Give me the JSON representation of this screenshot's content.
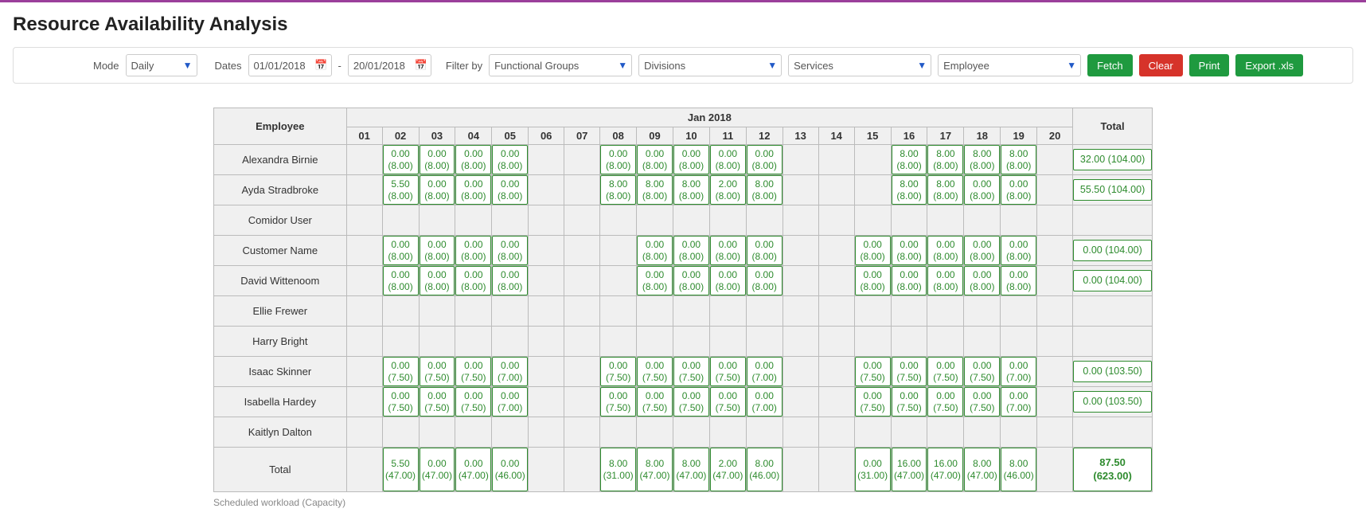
{
  "page": {
    "title": "Resource Availability Analysis"
  },
  "filters": {
    "mode_label": "Mode",
    "mode_value": "Daily",
    "dates_label": "Dates",
    "date_from": "01/01/2018",
    "date_to": "20/01/2018",
    "filterby_label": "Filter by",
    "groups_value": "Functional Groups",
    "divisions_value": "Divisions",
    "services_value": "Services",
    "employee_value": "Employee",
    "fetch_label": "Fetch",
    "clear_label": "Clear",
    "print_label": "Print",
    "export_label": "Export .xls"
  },
  "table": {
    "employee_header": "Employee",
    "month_header": "Jan 2018",
    "total_header": "Total",
    "days": [
      "01",
      "02",
      "03",
      "04",
      "05",
      "06",
      "07",
      "08",
      "09",
      "10",
      "11",
      "12",
      "13",
      "14",
      "15",
      "16",
      "17",
      "18",
      "19",
      "20"
    ],
    "rows": [
      {
        "name": "Alexandra Birnie",
        "cells": [
          null,
          [
            "0.00",
            "(8.00)"
          ],
          [
            "0.00",
            "(8.00)"
          ],
          [
            "0.00",
            "(8.00)"
          ],
          [
            "0.00",
            "(8.00)"
          ],
          null,
          null,
          [
            "0.00",
            "(8.00)"
          ],
          [
            "0.00",
            "(8.00)"
          ],
          [
            "0.00",
            "(8.00)"
          ],
          [
            "0.00",
            "(8.00)"
          ],
          [
            "0.00",
            "(8.00)"
          ],
          null,
          null,
          null,
          [
            "8.00",
            "(8.00)"
          ],
          [
            "8.00",
            "(8.00)"
          ],
          [
            "8.00",
            "(8.00)"
          ],
          [
            "8.00",
            "(8.00)"
          ],
          null
        ],
        "total": "32.00 (104.00)"
      },
      {
        "name": "Ayda Stradbroke",
        "cells": [
          null,
          [
            "5.50",
            "(8.00)"
          ],
          [
            "0.00",
            "(8.00)"
          ],
          [
            "0.00",
            "(8.00)"
          ],
          [
            "0.00",
            "(8.00)"
          ],
          null,
          null,
          [
            "8.00",
            "(8.00)"
          ],
          [
            "8.00",
            "(8.00)"
          ],
          [
            "8.00",
            "(8.00)"
          ],
          [
            "2.00",
            "(8.00)"
          ],
          [
            "8.00",
            "(8.00)"
          ],
          null,
          null,
          null,
          [
            "8.00",
            "(8.00)"
          ],
          [
            "8.00",
            "(8.00)"
          ],
          [
            "0.00",
            "(8.00)"
          ],
          [
            "0.00",
            "(8.00)"
          ],
          null
        ],
        "total": "55.50 (104.00)"
      },
      {
        "name": "Comidor User",
        "cells": [
          null,
          null,
          null,
          null,
          null,
          null,
          null,
          null,
          null,
          null,
          null,
          null,
          null,
          null,
          null,
          null,
          null,
          null,
          null,
          null
        ],
        "total": null
      },
      {
        "name": "Customer Name",
        "cells": [
          null,
          [
            "0.00",
            "(8.00)"
          ],
          [
            "0.00",
            "(8.00)"
          ],
          [
            "0.00",
            "(8.00)"
          ],
          [
            "0.00",
            "(8.00)"
          ],
          null,
          null,
          null,
          [
            "0.00",
            "(8.00)"
          ],
          [
            "0.00",
            "(8.00)"
          ],
          [
            "0.00",
            "(8.00)"
          ],
          [
            "0.00",
            "(8.00)"
          ],
          null,
          null,
          [
            "0.00",
            "(8.00)"
          ],
          [
            "0.00",
            "(8.00)"
          ],
          [
            "0.00",
            "(8.00)"
          ],
          [
            "0.00",
            "(8.00)"
          ],
          [
            "0.00",
            "(8.00)"
          ],
          null
        ],
        "total": "0.00 (104.00)"
      },
      {
        "name": "David Wittenoom",
        "cells": [
          null,
          [
            "0.00",
            "(8.00)"
          ],
          [
            "0.00",
            "(8.00)"
          ],
          [
            "0.00",
            "(8.00)"
          ],
          [
            "0.00",
            "(8.00)"
          ],
          null,
          null,
          null,
          [
            "0.00",
            "(8.00)"
          ],
          [
            "0.00",
            "(8.00)"
          ],
          [
            "0.00",
            "(8.00)"
          ],
          [
            "0.00",
            "(8.00)"
          ],
          null,
          null,
          [
            "0.00",
            "(8.00)"
          ],
          [
            "0.00",
            "(8.00)"
          ],
          [
            "0.00",
            "(8.00)"
          ],
          [
            "0.00",
            "(8.00)"
          ],
          [
            "0.00",
            "(8.00)"
          ],
          null
        ],
        "total": "0.00 (104.00)"
      },
      {
        "name": "Ellie Frewer",
        "cells": [
          null,
          null,
          null,
          null,
          null,
          null,
          null,
          null,
          null,
          null,
          null,
          null,
          null,
          null,
          null,
          null,
          null,
          null,
          null,
          null
        ],
        "total": null
      },
      {
        "name": "Harry Bright",
        "cells": [
          null,
          null,
          null,
          null,
          null,
          null,
          null,
          null,
          null,
          null,
          null,
          null,
          null,
          null,
          null,
          null,
          null,
          null,
          null,
          null
        ],
        "total": null
      },
      {
        "name": "Isaac Skinner",
        "cells": [
          null,
          [
            "0.00",
            "(7.50)"
          ],
          [
            "0.00",
            "(7.50)"
          ],
          [
            "0.00",
            "(7.50)"
          ],
          [
            "0.00",
            "(7.00)"
          ],
          null,
          null,
          [
            "0.00",
            "(7.50)"
          ],
          [
            "0.00",
            "(7.50)"
          ],
          [
            "0.00",
            "(7.50)"
          ],
          [
            "0.00",
            "(7.50)"
          ],
          [
            "0.00",
            "(7.00)"
          ],
          null,
          null,
          [
            "0.00",
            "(7.50)"
          ],
          [
            "0.00",
            "(7.50)"
          ],
          [
            "0.00",
            "(7.50)"
          ],
          [
            "0.00",
            "(7.50)"
          ],
          [
            "0.00",
            "(7.00)"
          ],
          null
        ],
        "total": "0.00 (103.50)"
      },
      {
        "name": "Isabella Hardey",
        "cells": [
          null,
          [
            "0.00",
            "(7.50)"
          ],
          [
            "0.00",
            "(7.50)"
          ],
          [
            "0.00",
            "(7.50)"
          ],
          [
            "0.00",
            "(7.00)"
          ],
          null,
          null,
          [
            "0.00",
            "(7.50)"
          ],
          [
            "0.00",
            "(7.50)"
          ],
          [
            "0.00",
            "(7.50)"
          ],
          [
            "0.00",
            "(7.50)"
          ],
          [
            "0.00",
            "(7.00)"
          ],
          null,
          null,
          [
            "0.00",
            "(7.50)"
          ],
          [
            "0.00",
            "(7.50)"
          ],
          [
            "0.00",
            "(7.50)"
          ],
          [
            "0.00",
            "(7.50)"
          ],
          [
            "0.00",
            "(7.00)"
          ],
          null
        ],
        "total": "0.00 (103.50)"
      },
      {
        "name": "Kaitlyn Dalton",
        "cells": [
          null,
          null,
          null,
          null,
          null,
          null,
          null,
          null,
          null,
          null,
          null,
          null,
          null,
          null,
          null,
          null,
          null,
          null,
          null,
          null
        ],
        "total": null
      }
    ],
    "total_row": {
      "name": "Total",
      "cells": [
        null,
        [
          "5.50",
          "(47.00)"
        ],
        [
          "0.00",
          "(47.00)"
        ],
        [
          "0.00",
          "(47.00)"
        ],
        [
          "0.00",
          "(46.00)"
        ],
        null,
        null,
        [
          "8.00",
          "(31.00)"
        ],
        [
          "8.00",
          "(47.00)"
        ],
        [
          "8.00",
          "(47.00)"
        ],
        [
          "2.00",
          "(47.00)"
        ],
        [
          "8.00",
          "(46.00)"
        ],
        null,
        null,
        [
          "0.00",
          "(31.00)"
        ],
        [
          "16.00",
          "(47.00)"
        ],
        [
          "16.00",
          "(47.00)"
        ],
        [
          "8.00",
          "(47.00)"
        ],
        [
          "8.00",
          "(46.00)"
        ],
        null
      ],
      "total_top": "87.50",
      "total_bot": "(623.00)"
    },
    "footnote": "Scheduled workload (Capacity)"
  },
  "colors": {
    "cell_border": "#2e8b2e",
    "cell_text": "#2e8b2e",
    "btn_green": "#1f9a3f",
    "btn_red": "#d6332a",
    "top_bar": "#9b3f9b"
  }
}
